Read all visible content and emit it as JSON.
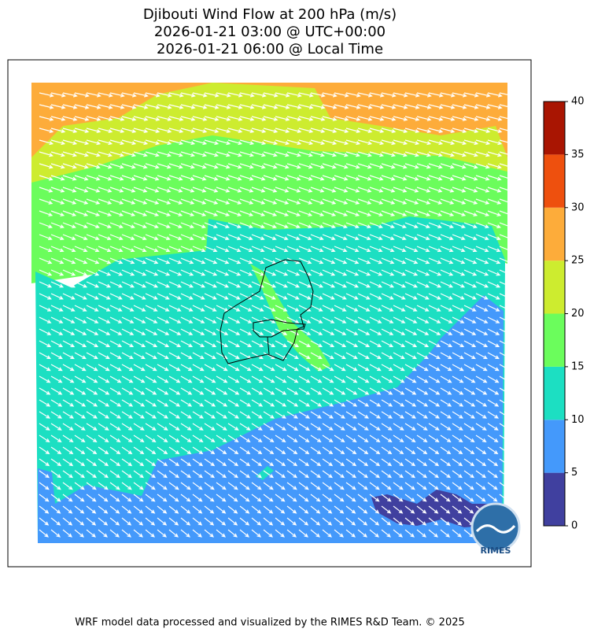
{
  "title": [
    "Djibouti Wind Flow at 200 hPa (m/s)",
    "2026-01-21 03:00 @ UTC+00:00",
    "2026-01-21 06:00 @ Local Time"
  ],
  "colorbar": {
    "ticks": [
      0,
      5,
      10,
      15,
      20,
      25,
      30,
      35,
      40
    ],
    "colors": [
      "#40409f",
      "#4499fb",
      "#1cdfc2",
      "#6bfd5c",
      "#cdec2f",
      "#fdac3a",
      "#ee500e",
      "#a91502"
    ]
  },
  "logo": "RIMES",
  "footer": "WRF model data processed and visualized by the RIMES R&D Team. © 2025"
}
